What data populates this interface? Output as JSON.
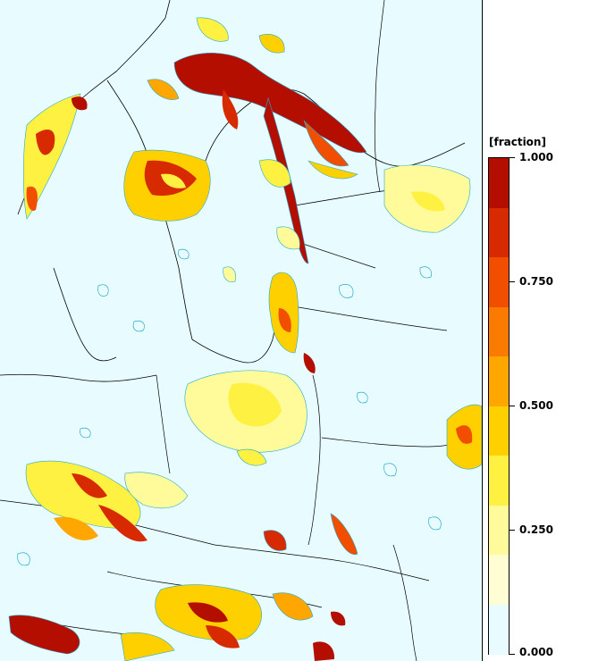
{
  "legend": {
    "title": "[fraction]",
    "ticks": [
      "1.000",
      "0.750",
      "0.500",
      "0.250",
      "0.000"
    ],
    "colors": [
      "#b40e00",
      "#d82a00",
      "#f14e00",
      "#fb7b00",
      "#ffa700",
      "#ffd000",
      "#fff142",
      "#fffa9a",
      "#fffdd3",
      "#e8fcff"
    ]
  },
  "map": {
    "background_color": "#e8fcff",
    "contour_color": "#22aacc",
    "border_color": "#000000"
  }
}
